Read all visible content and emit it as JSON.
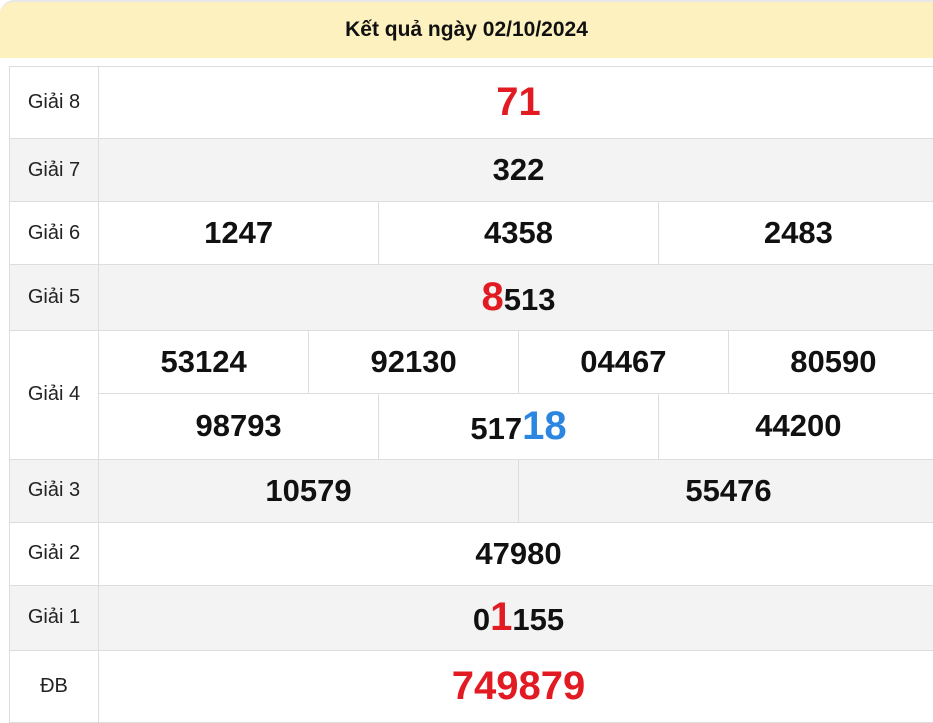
{
  "header": {
    "title": "Kết quả ngày 02/10/2024"
  },
  "colors": {
    "header_bg": "#fdf1bf",
    "highlight_red": "#e21b23",
    "highlight_blue": "#2a86e0"
  },
  "prizes": {
    "g8": {
      "label": "Giải 8",
      "value": "71"
    },
    "g7": {
      "label": "Giải 7",
      "value": "322"
    },
    "g6": {
      "label": "Giải 6",
      "values": [
        "1247",
        "4358",
        "2483"
      ]
    },
    "g5": {
      "label": "Giải 5",
      "value": "8513",
      "parts": [
        "",
        "8",
        "513"
      ]
    },
    "g4": {
      "label": "Giải 4",
      "values": [
        "53124",
        "92130",
        "04467",
        "80590",
        "98793",
        "51718",
        "44200"
      ],
      "highlight_parts": [
        "517",
        "18",
        ""
      ]
    },
    "g3": {
      "label": "Giải 3",
      "values": [
        "10579",
        "55476"
      ]
    },
    "g2": {
      "label": "Giải 2",
      "value": "47980"
    },
    "g1": {
      "label": "Giải 1",
      "value": "01155",
      "parts": [
        "0",
        "1",
        "155"
      ]
    },
    "db": {
      "label": "ĐB",
      "value": "749879"
    }
  }
}
